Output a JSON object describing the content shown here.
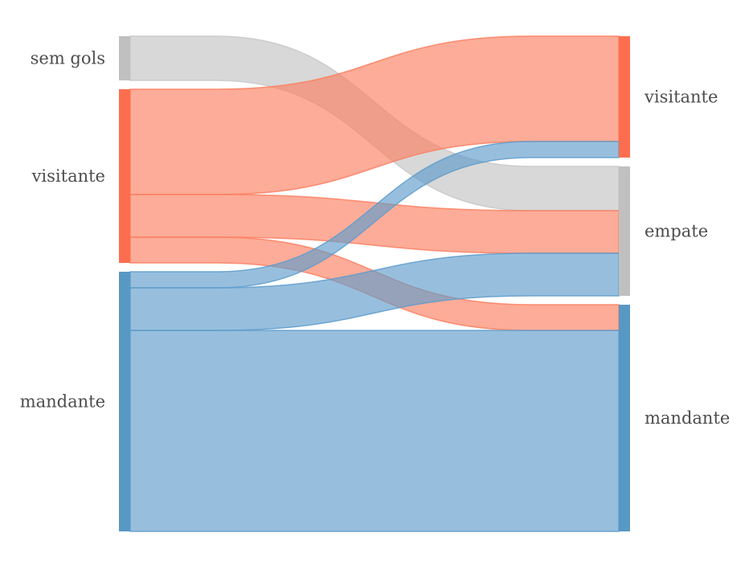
{
  "chart_data": {
    "type": "sankey",
    "title": "",
    "colors": {
      "sem gols": "#c0c0c0",
      "visitante": "#fd6e4f",
      "mandante": "#5898c4",
      "empate": "#c0c0c0"
    },
    "link_colors": {
      "sem gols": "#c8c8c8",
      "visitante": "#fb7f61",
      "mandante": "#5f9ccb"
    },
    "left_nodes": [
      {
        "id": "sem gols",
        "label": "sem gols"
      },
      {
        "id": "visitante",
        "label": "visitante"
      },
      {
        "id": "mandante",
        "label": "mandante"
      }
    ],
    "right_nodes": [
      {
        "id": "visitante",
        "label": "visitante"
      },
      {
        "id": "empate",
        "label": "empate"
      },
      {
        "id": "mandante",
        "label": "mandante"
      }
    ],
    "links": [
      {
        "source": "sem gols",
        "target": "empate",
        "value": 55
      },
      {
        "source": "visitante",
        "target": "visitante",
        "value": 131
      },
      {
        "source": "visitante",
        "target": "empate",
        "value": 53
      },
      {
        "source": "visitante",
        "target": "mandante",
        "value": 32
      },
      {
        "source": "mandante",
        "target": "visitante",
        "value": 20
      },
      {
        "source": "mandante",
        "target": "empate",
        "value": 53
      },
      {
        "source": "mandante",
        "target": "mandante",
        "value": 250
      }
    ]
  }
}
